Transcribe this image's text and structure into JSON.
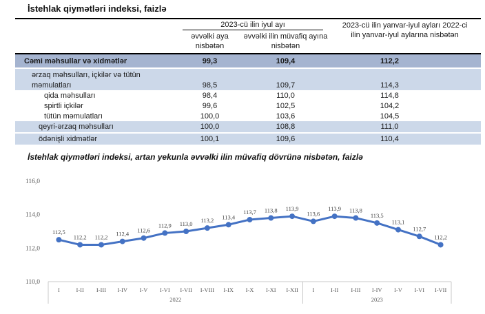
{
  "page_title": "İstehlak qiymətləri indeksi, faizlə",
  "table": {
    "col_group_header": "2023-cü ilin iyul ayı",
    "col1_header": "əvvəlki aya nisbətən",
    "col2_header": "əvvəlki ilin müvafiq ayına nisbətən",
    "col3_header": "2023-cü ilin yanvar-iyul ayları 2022-ci ilin yanvar-iyul aylarına nisbətən",
    "rows": [
      {
        "label": "Cəmi məhsullar və xidmətlər",
        "v1": "99,3",
        "v2": "109,4",
        "v3": "112,2"
      },
      {
        "label": "ərzaq məhsulları, içkilər və tütün məmulatları",
        "v1": "98,5",
        "v2": "109,7",
        "v3": "114,3"
      },
      {
        "label": "qida məhsulları",
        "v1": "98,4",
        "v2": "110,0",
        "v3": "114,8"
      },
      {
        "label": "spirtli içkilər",
        "v1": "99,6",
        "v2": "102,5",
        "v3": "104,2"
      },
      {
        "label": "tütün məmulatları",
        "v1": "100,0",
        "v2": "103,6",
        "v3": "104,5"
      },
      {
        "label": "qeyri-ərzaq məhsulları",
        "v1": "100,0",
        "v2": "108,8",
        "v3": "111,0"
      },
      {
        "label": "ödənişli xidmətlər",
        "v1": "100,1",
        "v2": "109,6",
        "v3": "110,4"
      }
    ]
  },
  "chart_title": "İstehlak qiymətləri indeksi, artan yekunla əvvəlki ilin müvafiq dövrünə nisbətən, faizlə",
  "chart_data": {
    "type": "line",
    "categories": [
      "I",
      "I-II",
      "I-III",
      "I-IV",
      "I-V",
      "I-VI",
      "I-VII",
      "I-VIII",
      "I-IX",
      "I-X",
      "I-XI",
      "I-XII",
      "I",
      "I-II",
      "I-III",
      "I-IV",
      "I-V",
      "I-VI",
      "I-VII"
    ],
    "values": [
      112.5,
      112.2,
      112.2,
      112.4,
      112.6,
      112.9,
      113.0,
      113.2,
      113.4,
      113.7,
      113.8,
      113.9,
      113.6,
      113.9,
      113.8,
      113.5,
      113.1,
      112.7,
      112.2
    ],
    "point_labels": [
      "112,5",
      "112,2",
      "112,2",
      "112,4",
      "112,6",
      "112,9",
      "113,0",
      "113,2",
      "113,4",
      "113,7",
      "113,8",
      "113,9",
      "113,6",
      "113,9",
      "113,8",
      "113,5",
      "113,1",
      "112,7",
      "112,2"
    ],
    "year_groups": [
      {
        "label": "2022",
        "count": 12
      },
      {
        "label": "2023",
        "count": 7
      }
    ],
    "yticks": [
      {
        "label": "116,0",
        "value": 116
      },
      {
        "label": "114,0",
        "value": 114
      },
      {
        "label": "112,0",
        "value": 112
      },
      {
        "label": "110,0",
        "value": 110
      }
    ],
    "ylim": [
      110,
      116
    ],
    "grid": false,
    "legend": "none",
    "line_color": "#4472c4"
  },
  "colors": {
    "total_row_bg": "#a5b4d0",
    "group_row_bg": "#ccd8e9",
    "line": "#4472c4",
    "axis": "#c9c9c9"
  }
}
